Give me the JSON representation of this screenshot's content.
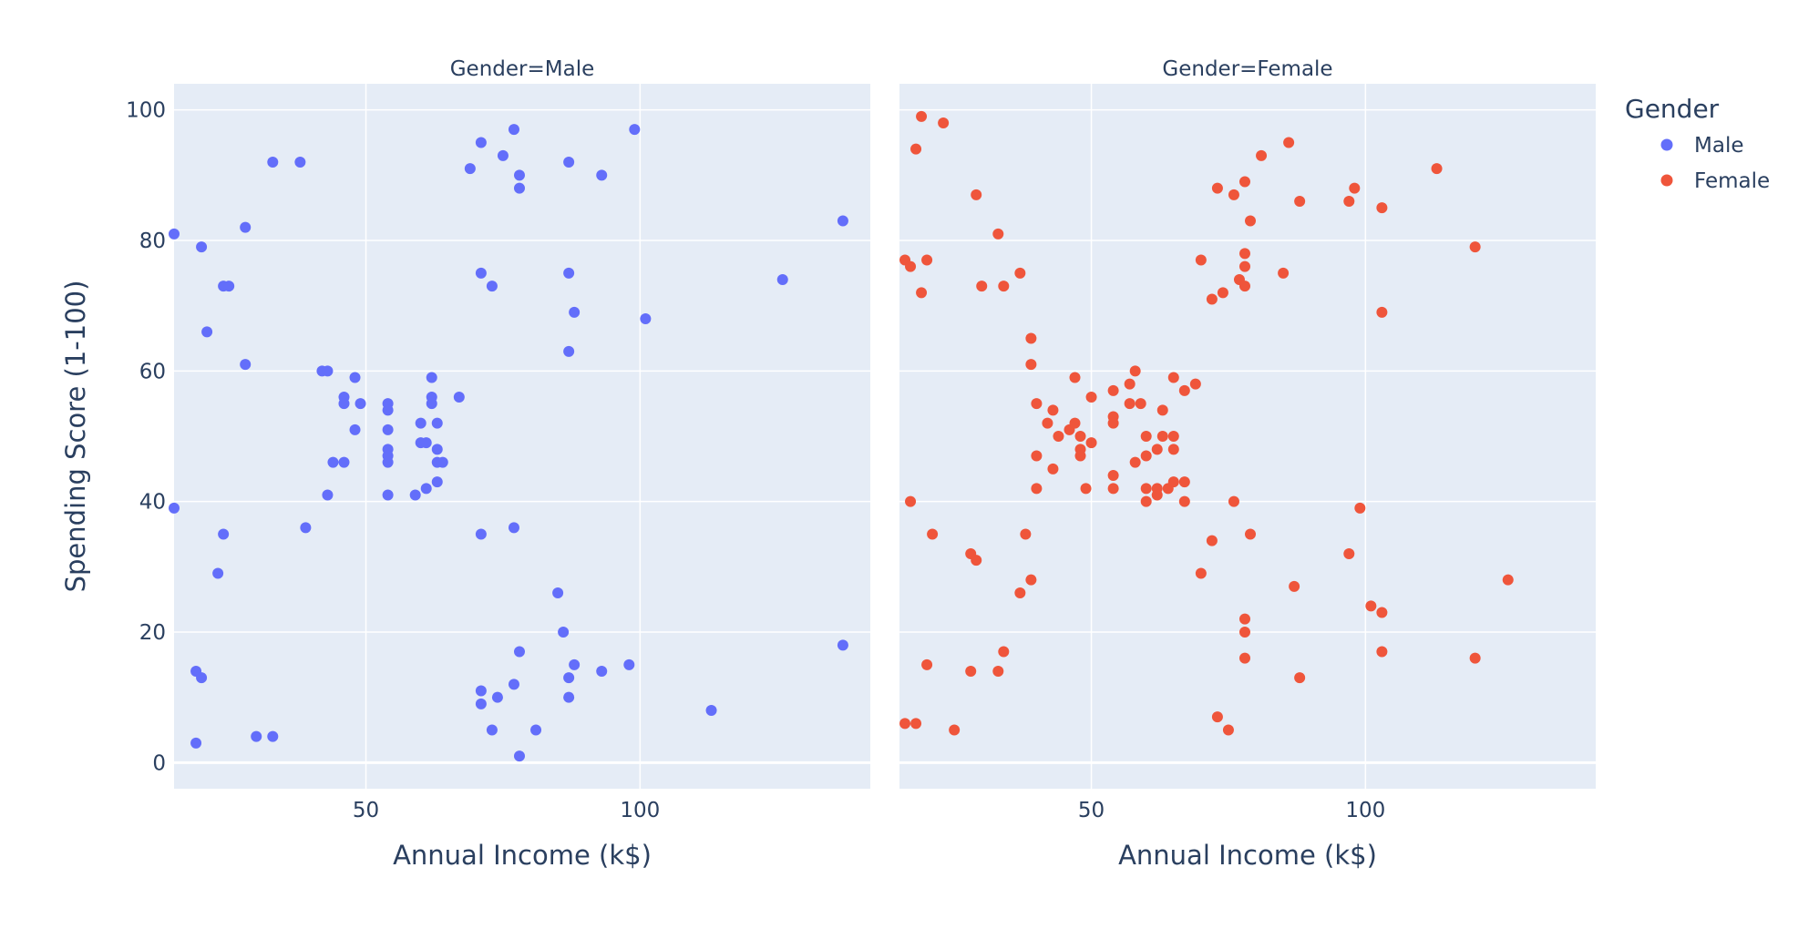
{
  "chart_data": {
    "type": "scatter",
    "legend": {
      "title": "Gender",
      "position": "top-right"
    },
    "xlabel": "Annual Income (k$)",
    "ylabel": "Spending Score (1-100)",
    "xlim": [
      15,
      142
    ],
    "ylim": [
      -4,
      104
    ],
    "xticks": [
      50,
      100
    ],
    "yticks": [
      0,
      20,
      40,
      60,
      80,
      100
    ],
    "grid": true,
    "facets": [
      {
        "title": "Gender=Male",
        "series": "Male"
      },
      {
        "title": "Gender=Female",
        "series": "Female"
      }
    ],
    "series": [
      {
        "name": "Male",
        "color": "#636efa",
        "points": [
          [
            15,
            81
          ],
          [
            15,
            39
          ],
          [
            20,
            79
          ],
          [
            21,
            66
          ],
          [
            24,
            73
          ],
          [
            25,
            73
          ],
          [
            23,
            29
          ],
          [
            24,
            35
          ],
          [
            19,
            14
          ],
          [
            20,
            13
          ],
          [
            19,
            3
          ],
          [
            28,
            82
          ],
          [
            28,
            61
          ],
          [
            30,
            4
          ],
          [
            33,
            4
          ],
          [
            33,
            92
          ],
          [
            38,
            92
          ],
          [
            39,
            36
          ],
          [
            42,
            60
          ],
          [
            43,
            60
          ],
          [
            43,
            41
          ],
          [
            44,
            46
          ],
          [
            46,
            56
          ],
          [
            46,
            55
          ],
          [
            46,
            46
          ],
          [
            48,
            59
          ],
          [
            48,
            51
          ],
          [
            49,
            55
          ],
          [
            54,
            55
          ],
          [
            54,
            54
          ],
          [
            54,
            51
          ],
          [
            54,
            48
          ],
          [
            54,
            47
          ],
          [
            54,
            46
          ],
          [
            54,
            41
          ],
          [
            59,
            41
          ],
          [
            60,
            52
          ],
          [
            60,
            49
          ],
          [
            61,
            49
          ],
          [
            61,
            42
          ],
          [
            62,
            59
          ],
          [
            62,
            56
          ],
          [
            62,
            55
          ],
          [
            63,
            52
          ],
          [
            63,
            48
          ],
          [
            63,
            46
          ],
          [
            63,
            43
          ],
          [
            64,
            46
          ],
          [
            67,
            56
          ],
          [
            69,
            91
          ],
          [
            71,
            95
          ],
          [
            71,
            75
          ],
          [
            71,
            35
          ],
          [
            71,
            11
          ],
          [
            71,
            9
          ],
          [
            73,
            73
          ],
          [
            73,
            5
          ],
          [
            74,
            10
          ],
          [
            75,
            93
          ],
          [
            77,
            97
          ],
          [
            77,
            36
          ],
          [
            77,
            12
          ],
          [
            78,
            90
          ],
          [
            78,
            88
          ],
          [
            78,
            17
          ],
          [
            78,
            1
          ],
          [
            81,
            5
          ],
          [
            85,
            26
          ],
          [
            86,
            20
          ],
          [
            87,
            92
          ],
          [
            87,
            75
          ],
          [
            87,
            63
          ],
          [
            87,
            13
          ],
          [
            87,
            10
          ],
          [
            88,
            69
          ],
          [
            88,
            15
          ],
          [
            93,
            90
          ],
          [
            93,
            14
          ],
          [
            98,
            15
          ],
          [
            99,
            97
          ],
          [
            101,
            68
          ],
          [
            113,
            8
          ],
          [
            126,
            74
          ],
          [
            137,
            83
          ],
          [
            137,
            18
          ]
        ]
      },
      {
        "name": "Female",
        "color": "#ef553b",
        "points": [
          [
            16,
            77
          ],
          [
            16,
            6
          ],
          [
            17,
            76
          ],
          [
            17,
            40
          ],
          [
            18,
            94
          ],
          [
            18,
            6
          ],
          [
            19,
            99
          ],
          [
            19,
            72
          ],
          [
            20,
            77
          ],
          [
            20,
            15
          ],
          [
            21,
            35
          ],
          [
            23,
            98
          ],
          [
            25,
            5
          ],
          [
            28,
            32
          ],
          [
            28,
            14
          ],
          [
            29,
            87
          ],
          [
            29,
            31
          ],
          [
            30,
            73
          ],
          [
            33,
            81
          ],
          [
            33,
            14
          ],
          [
            34,
            73
          ],
          [
            34,
            17
          ],
          [
            37,
            75
          ],
          [
            37,
            26
          ],
          [
            38,
            35
          ],
          [
            39,
            65
          ],
          [
            39,
            61
          ],
          [
            39,
            28
          ],
          [
            40,
            55
          ],
          [
            40,
            47
          ],
          [
            40,
            42
          ],
          [
            42,
            52
          ],
          [
            43,
            54
          ],
          [
            43,
            45
          ],
          [
            44,
            50
          ],
          [
            46,
            51
          ],
          [
            47,
            59
          ],
          [
            47,
            52
          ],
          [
            48,
            50
          ],
          [
            48,
            48
          ],
          [
            48,
            47
          ],
          [
            49,
            42
          ],
          [
            50,
            56
          ],
          [
            50,
            49
          ],
          [
            54,
            57
          ],
          [
            54,
            53
          ],
          [
            54,
            52
          ],
          [
            54,
            44
          ],
          [
            54,
            42
          ],
          [
            57,
            58
          ],
          [
            57,
            55
          ],
          [
            58,
            60
          ],
          [
            58,
            46
          ],
          [
            59,
            55
          ],
          [
            60,
            50
          ],
          [
            60,
            47
          ],
          [
            60,
            42
          ],
          [
            60,
            40
          ],
          [
            62,
            48
          ],
          [
            62,
            42
          ],
          [
            62,
            41
          ],
          [
            63,
            54
          ],
          [
            63,
            50
          ],
          [
            64,
            42
          ],
          [
            65,
            59
          ],
          [
            65,
            50
          ],
          [
            65,
            48
          ],
          [
            65,
            43
          ],
          [
            67,
            57
          ],
          [
            67,
            43
          ],
          [
            67,
            40
          ],
          [
            69,
            58
          ],
          [
            70,
            77
          ],
          [
            70,
            29
          ],
          [
            72,
            71
          ],
          [
            72,
            34
          ],
          [
            73,
            88
          ],
          [
            73,
            7
          ],
          [
            74,
            72
          ],
          [
            75,
            5
          ],
          [
            76,
            87
          ],
          [
            76,
            40
          ],
          [
            77,
            74
          ],
          [
            78,
            89
          ],
          [
            78,
            78
          ],
          [
            78,
            76
          ],
          [
            78,
            73
          ],
          [
            78,
            22
          ],
          [
            78,
            20
          ],
          [
            78,
            16
          ],
          [
            79,
            83
          ],
          [
            79,
            35
          ],
          [
            81,
            93
          ],
          [
            85,
            75
          ],
          [
            86,
            95
          ],
          [
            87,
            27
          ],
          [
            88,
            86
          ],
          [
            88,
            13
          ],
          [
            97,
            86
          ],
          [
            97,
            32
          ],
          [
            98,
            88
          ],
          [
            99,
            39
          ],
          [
            101,
            24
          ],
          [
            103,
            85
          ],
          [
            103,
            69
          ],
          [
            103,
            23
          ],
          [
            103,
            17
          ],
          [
            113,
            91
          ],
          [
            120,
            79
          ],
          [
            120,
            16
          ],
          [
            126,
            28
          ]
        ]
      }
    ]
  }
}
